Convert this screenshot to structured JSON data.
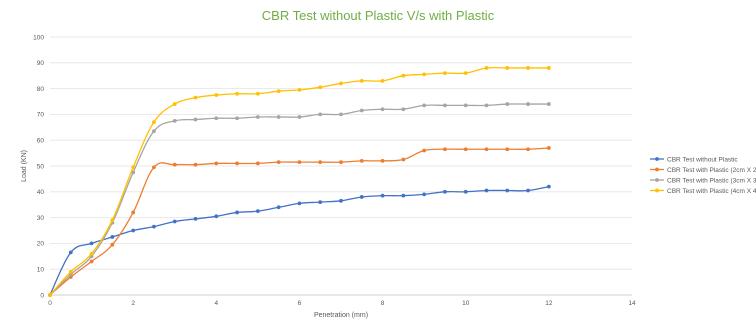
{
  "chart_data": {
    "type": "line",
    "title": "CBR Test without Plastic V/s with Plastic",
    "xlabel": "Penetration (mm)",
    "ylabel": "Load (KN)",
    "xlim": [
      0,
      14
    ],
    "ylim": [
      0,
      100
    ],
    "x_ticks": [
      "0",
      "2",
      "4",
      "6",
      "8",
      "10",
      "12",
      "14"
    ],
    "y_ticks": [
      "0",
      "10",
      "20",
      "30",
      "40",
      "50",
      "60",
      "70",
      "80",
      "90",
      "100"
    ],
    "grid": "horizontal",
    "legend_position": "right",
    "x": [
      0,
      0.5,
      1,
      1.5,
      2,
      2.5,
      3,
      3.5,
      4,
      4.5,
      5,
      5.5,
      6,
      6.5,
      7,
      7.5,
      8,
      8.5,
      9,
      9.5,
      10,
      10.5,
      11,
      11.5,
      12
    ],
    "series": [
      {
        "name": "CBR Test without Plastic",
        "color": "#4472c4",
        "values": [
          0,
          16.5,
          20,
          22.5,
          25,
          26.5,
          28.5,
          29.5,
          30.5,
          32,
          32.5,
          34,
          35.5,
          36,
          36.5,
          38,
          38.5,
          38.5,
          39,
          40,
          40,
          40.5,
          40.5,
          40.5,
          42
        ]
      },
      {
        "name": "CBR Test with Plastic (2cm X 2c",
        "color": "#ed7d31",
        "values": [
          0,
          7,
          13,
          19.5,
          32,
          49.5,
          50.5,
          50.5,
          51,
          51,
          51,
          51.5,
          51.5,
          51.5,
          51.5,
          52,
          52,
          52.5,
          56,
          56.5,
          56.5,
          56.5,
          56.5,
          56.5,
          57
        ]
      },
      {
        "name": "CBR Test with Plastic (3cm X 3c",
        "color": "#a5a5a5",
        "values": [
          0,
          8,
          15,
          28,
          47.5,
          63.5,
          67.5,
          68,
          68.5,
          68.5,
          69,
          69,
          69,
          70,
          70,
          71.5,
          72,
          72,
          73.5,
          73.5,
          73.5,
          73.5,
          74,
          74,
          74
        ]
      },
      {
        "name": "CBR Test with Plastic (4cm X 4c",
        "color": "#ffc000",
        "values": [
          0,
          9,
          16,
          29,
          49.5,
          67,
          74,
          76.5,
          77.5,
          78,
          78,
          79,
          79.5,
          80.5,
          82,
          83,
          83,
          85,
          85.5,
          86,
          86,
          88,
          88,
          88,
          88
        ]
      }
    ]
  }
}
